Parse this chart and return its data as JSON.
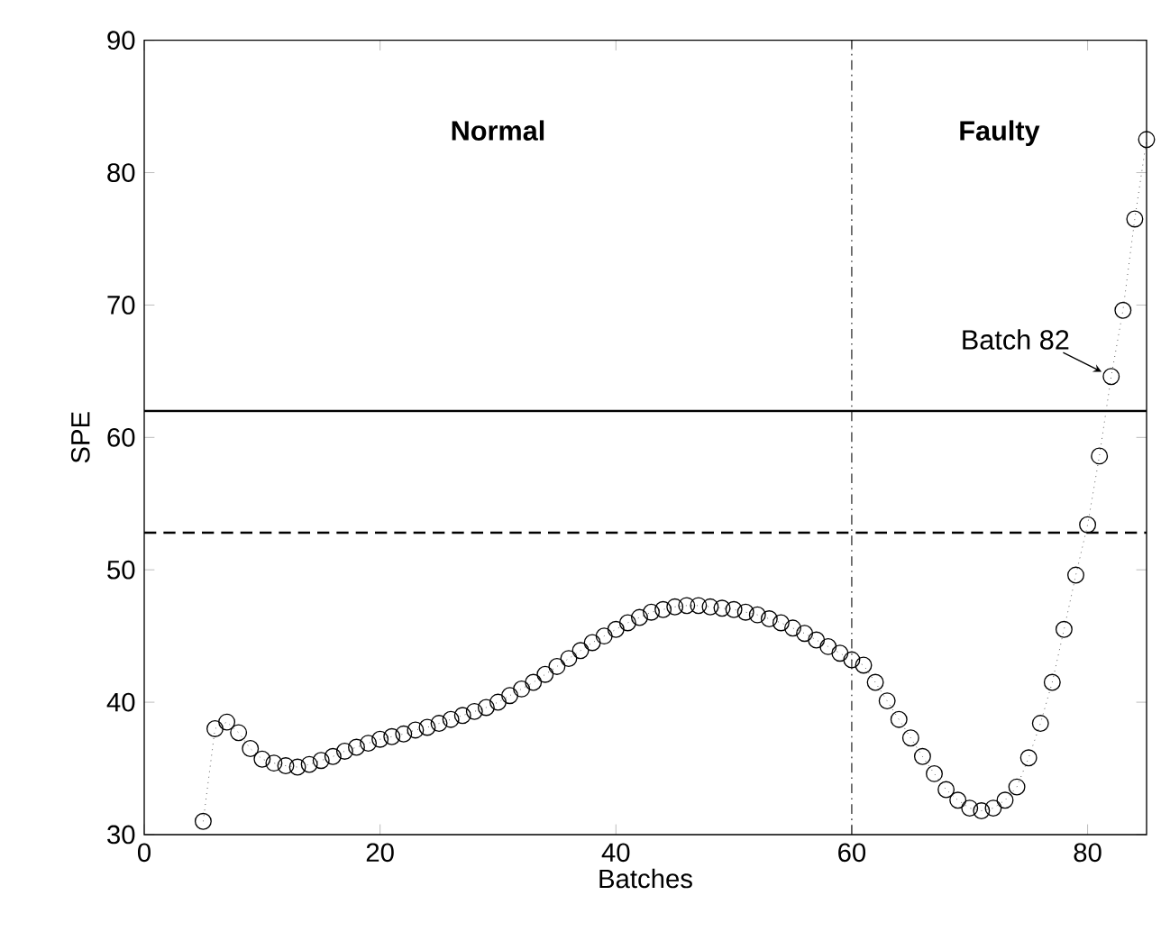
{
  "chart_data": {
    "type": "line",
    "xlabel": "Batches",
    "ylabel": "SPE",
    "x": [
      5,
      6,
      7,
      8,
      9,
      10,
      11,
      12,
      13,
      14,
      15,
      16,
      17,
      18,
      19,
      20,
      21,
      22,
      23,
      24,
      25,
      26,
      27,
      28,
      29,
      30,
      31,
      32,
      33,
      34,
      35,
      36,
      37,
      38,
      39,
      40,
      41,
      42,
      43,
      44,
      45,
      46,
      47,
      48,
      49,
      50,
      51,
      52,
      53,
      54,
      55,
      56,
      57,
      58,
      59,
      60,
      61,
      62,
      63,
      64,
      65,
      66,
      67,
      68,
      69,
      70,
      71,
      72,
      73,
      74,
      75,
      76,
      77,
      78,
      79,
      80,
      81,
      82,
      83,
      84,
      85
    ],
    "series": [
      {
        "color": "#000000",
        "values": [
          31.0,
          38.0,
          38.5,
          37.7,
          36.5,
          35.7,
          35.4,
          35.2,
          35.1,
          35.3,
          35.6,
          35.9,
          36.3,
          36.6,
          36.9,
          37.2,
          37.4,
          37.6,
          37.9,
          38.1,
          38.4,
          38.7,
          39.0,
          39.3,
          39.6,
          40.0,
          40.5,
          41.0,
          41.5,
          42.1,
          42.7,
          43.3,
          43.9,
          44.5,
          45.0,
          45.5,
          46.0,
          46.4,
          46.8,
          47.0,
          47.2,
          47.3,
          47.3,
          47.2,
          47.1,
          47.0,
          46.8,
          46.6,
          46.3,
          46.0,
          45.6,
          45.2,
          44.7,
          44.2,
          43.7,
          43.2,
          42.8,
          41.5,
          40.1,
          38.7,
          37.3,
          35.9,
          34.6,
          33.4,
          32.6,
          32.0,
          31.8,
          32.0,
          32.6,
          33.6,
          35.8,
          38.4,
          41.5,
          45.5,
          49.6,
          53.4,
          58.6,
          64.6,
          69.6,
          76.5,
          82.5
        ]
      }
    ],
    "marker": "circle",
    "line_style": "dotted",
    "xlim": [
      0,
      85
    ],
    "ylim": [
      30,
      90
    ],
    "xticks": [
      0,
      20,
      40,
      60,
      80
    ],
    "yticks": [
      30,
      40,
      50,
      60,
      70,
      80,
      90
    ],
    "grid": false,
    "ref_lines": [
      {
        "axis": "y",
        "value": 62,
        "color": "#000000",
        "line_style": "solid"
      },
      {
        "axis": "y",
        "value": 52.8,
        "color": "#000000",
        "line_style": "dashed"
      },
      {
        "axis": "x",
        "value": 60,
        "color": "#000000",
        "line_style": "dashdot"
      }
    ],
    "annotations": [
      "**Normal**",
      "**Faulty**",
      {
        "text": "Batch 82",
        "x": 82,
        "y": 64.6
      }
    ]
  }
}
